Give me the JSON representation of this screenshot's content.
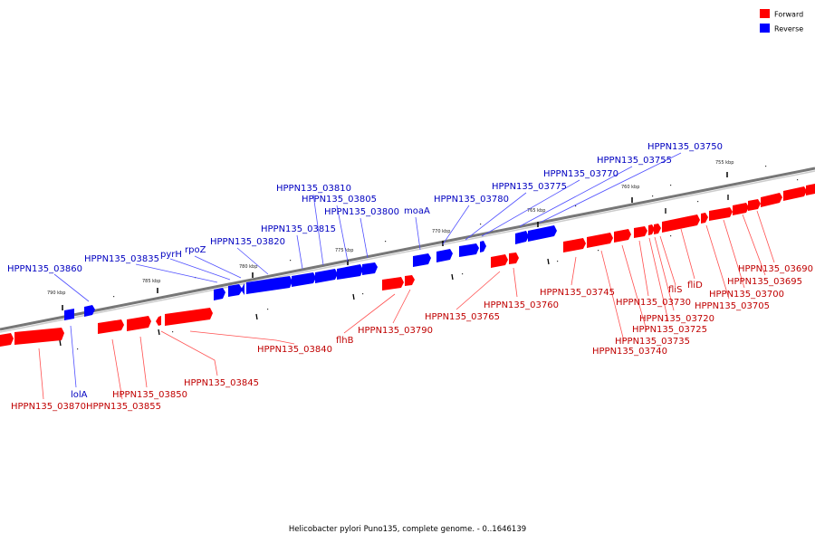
{
  "legend": {
    "forward_label": "Forward",
    "reverse_label": "Reverse",
    "forward_color": "#ff0000",
    "reverse_color": "#0000ff"
  },
  "colors": {
    "forward_label": "#c00000",
    "reverse_label": "#0000c0",
    "leader_forward": "#ff5050",
    "leader_reverse": "#5050ff",
    "axis": "#888888"
  },
  "icons": [
    "forward-gene-arrow-icon",
    "reverse-gene-arrow-icon"
  ],
  "caption": "Helicobacter pylori Puno135, complete genome. - 0..1646139",
  "ticks": [
    "755 kbp",
    "760 kbp",
    "765 kbp",
    "770 kbp",
    "775 kbp",
    "780 kbp",
    "785 kbp",
    "790 kbp"
  ],
  "reverse_labels": [
    "HPPN135_03860",
    "HPPN135_03835",
    "pyrH",
    "rpoZ",
    "HPPN135_03820",
    "HPPN135_03815",
    "HPPN135_03810",
    "HPPN135_03805",
    "HPPN135_03800",
    "moaA",
    "HPPN135_03780",
    "HPPN135_03775",
    "HPPN135_03770",
    "HPPN135_03755",
    "HPPN135_03750",
    "lolA"
  ],
  "forward_labels": [
    "HPPN135_03870",
    "HPPN135_03855",
    "HPPN135_03850",
    "HPPN135_03845",
    "HPPN135_03840",
    "flhB",
    "HPPN135_03790",
    "HPPN135_03765",
    "HPPN135_03760",
    "HPPN135_03745",
    "HPPN135_03740",
    "HPPN135_03735",
    "HPPN135_03730",
    "HPPN135_03725",
    "HPPN135_03720",
    "fliS",
    "fliD",
    "HPPN135_03705",
    "HPPN135_03700",
    "HPPN135_03695",
    "HPPN135_03690"
  ]
}
